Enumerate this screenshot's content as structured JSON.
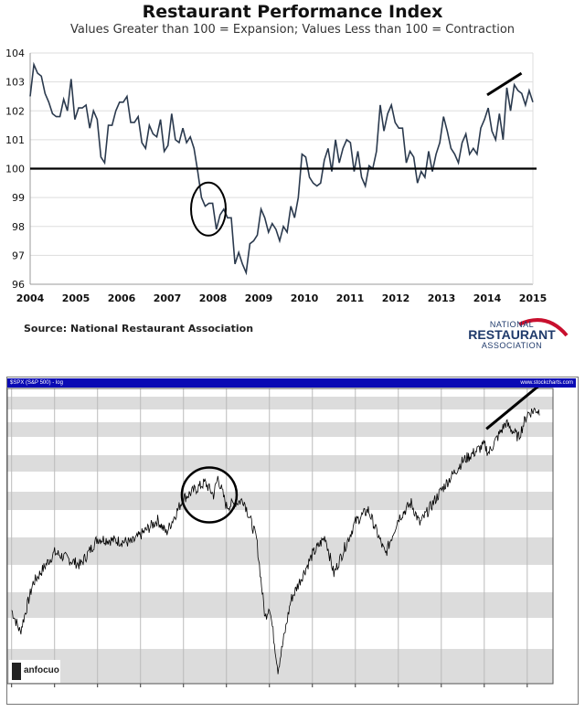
{
  "chart_data": [
    {
      "type": "line",
      "title": "Restaurant Performance Index",
      "subtitle": "Values Greater than 100 = Expansion; Values Less than 100 = Contraction",
      "xlabel": "",
      "ylabel": "",
      "xlim": [
        2004,
        2015
      ],
      "ylim": [
        96,
        104
      ],
      "x_ticks": [
        "2004",
        "2005",
        "2006",
        "2007",
        "2008",
        "2009",
        "2010",
        "2011",
        "2012",
        "2013",
        "2014",
        "2015"
      ],
      "y_ticks": [
        "96",
        "97",
        "98",
        "99",
        "100",
        "101",
        "102",
        "103",
        "104"
      ],
      "reference_line": 100,
      "grid": true,
      "series": [
        {
          "name": "RPI",
          "x_start": 2004,
          "x_end": 2015,
          "values": [
            102.5,
            103.6,
            103.3,
            103.2,
            102.6,
            102.3,
            101.9,
            101.8,
            101.8,
            102.4,
            102.0,
            103.1,
            101.7,
            102.1,
            102.1,
            102.2,
            101.4,
            102.0,
            101.7,
            100.4,
            100.2,
            101.5,
            101.5,
            102.0,
            102.3,
            102.3,
            102.5,
            101.6,
            101.6,
            101.8,
            100.9,
            100.7,
            101.5,
            101.2,
            101.1,
            101.7,
            100.6,
            100.8,
            101.9,
            101.0,
            100.9,
            101.4,
            100.9,
            101.1,
            100.7,
            99.9,
            99.0,
            98.7,
            98.8,
            98.8,
            97.9,
            98.4,
            98.6,
            98.3,
            98.3,
            96.7,
            97.1,
            96.7,
            96.4,
            97.4,
            97.5,
            97.7,
            98.6,
            98.3,
            97.8,
            98.1,
            97.9,
            97.5,
            98.0,
            97.8,
            98.7,
            98.3,
            99.0,
            100.5,
            100.4,
            99.7,
            99.5,
            99.4,
            99.5,
            100.3,
            100.7,
            99.9,
            101.0,
            100.2,
            100.7,
            101.0,
            100.9,
            99.9,
            100.6,
            99.7,
            99.4,
            100.1,
            100.0,
            100.6,
            102.2,
            101.3,
            101.9,
            102.2,
            101.6,
            101.4,
            101.4,
            100.2,
            100.6,
            100.4,
            99.5,
            99.9,
            99.7,
            100.6,
            99.9,
            100.5,
            100.9,
            101.8,
            101.3,
            100.7,
            100.5,
            100.2,
            100.9,
            101.2,
            100.5,
            100.7,
            100.5,
            101.4,
            101.7,
            102.1,
            101.3,
            101.0,
            101.9,
            101.0,
            102.8,
            102.0,
            102.9,
            102.7,
            102.6,
            102.2,
            102.7,
            102.3
          ]
        }
      ],
      "annotations": [
        "circle around 2008 decline",
        "up-trend line over 2014"
      ],
      "source": "Source: National Restaurant Association",
      "logo": {
        "line1": "NATIONAL",
        "line2": "RESTAURANT",
        "line3": "ASSOCIATION"
      }
    },
    {
      "type": "line",
      "title": "$SPX (S&P 500) - log",
      "header_right": "www.stockcharts.com",
      "y_scale": "log",
      "xlim": [
        2002.9,
        2015.6
      ],
      "ylim": [
        640,
        2300
      ],
      "series": [
        {
          "name": "S&P 500",
          "points": [
            [
              2003.0,
              880
            ],
            [
              2003.2,
              800
            ],
            [
              2003.5,
              990
            ],
            [
              2004.0,
              1130
            ],
            [
              2004.6,
              1070
            ],
            [
              2005.0,
              1200
            ],
            [
              2005.8,
              1180
            ],
            [
              2006.4,
              1300
            ],
            [
              2006.6,
              1230
            ],
            [
              2007.0,
              1430
            ],
            [
              2007.5,
              1530
            ],
            [
              2007.7,
              1450
            ],
            [
              2007.8,
              1565
            ],
            [
              2008.0,
              1380
            ],
            [
              2008.4,
              1420
            ],
            [
              2008.7,
              1200
            ],
            [
              2008.9,
              850
            ],
            [
              2009.0,
              900
            ],
            [
              2009.2,
              680
            ],
            [
              2009.5,
              920
            ],
            [
              2010.0,
              1120
            ],
            [
              2010.3,
              1210
            ],
            [
              2010.5,
              1030
            ],
            [
              2011.0,
              1290
            ],
            [
              2011.3,
              1360
            ],
            [
              2011.7,
              1120
            ],
            [
              2012.0,
              1310
            ],
            [
              2012.3,
              1400
            ],
            [
              2012.5,
              1280
            ],
            [
              2013.0,
              1480
            ],
            [
              2013.5,
              1680
            ],
            [
              2014.0,
              1800
            ],
            [
              2014.1,
              1740
            ],
            [
              2014.5,
              1980
            ],
            [
              2014.8,
              1860
            ],
            [
              2015.0,
              2060
            ],
            [
              2015.2,
              2100
            ],
            [
              2015.3,
              2080
            ]
          ]
        }
      ],
      "annotations": [
        "circle around 2007 peak",
        "up-trend line over 2014-2015"
      ],
      "watermark": "anfocuo",
      "colors": {
        "header": "#0a0ab4",
        "band": "#dcdcdc",
        "line": "#000000"
      }
    }
  ]
}
